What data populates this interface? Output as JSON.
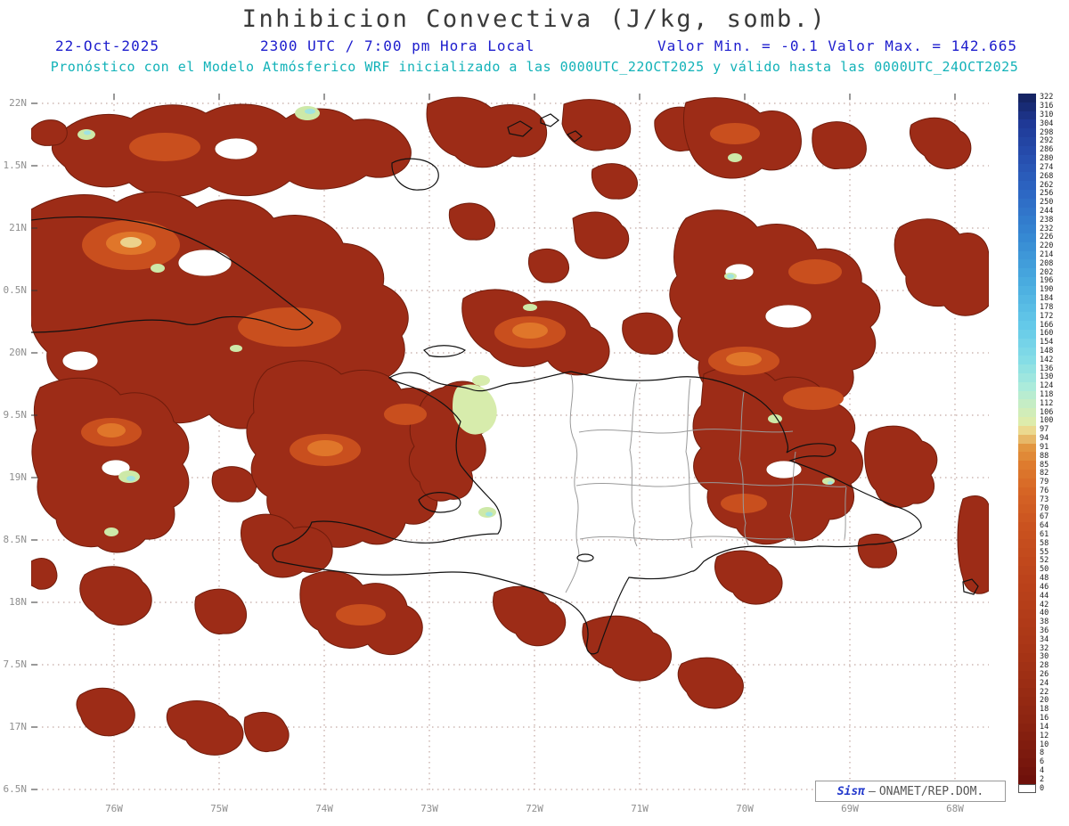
{
  "header": {
    "title": "Inhibicion Convectiva (J/kg, somb.)",
    "date": "22-Oct-2025",
    "time": "2300 UTC / 7:00 pm Hora Local",
    "min_max": "Valor Min. = -0.1  Valor Max. = 142.665",
    "forecast_note": "Pronóstico con el Modelo Atmósferico WRF inicializado a las 0000UTC_22OCT2025 y válido hasta las  0000UTC_24OCT2025"
  },
  "axes": {
    "y_labels": [
      "22N",
      "1.5N",
      "21N",
      "0.5N",
      "20N",
      "9.5N",
      "19N",
      "8.5N",
      "18N",
      "7.5N",
      "17N",
      "6.5N"
    ],
    "x_labels": [
      "76W",
      "75W",
      "74W",
      "73W",
      "72W",
      "71W",
      "70W",
      "69W",
      "68W"
    ]
  },
  "colorbar": {
    "units": "J/kg",
    "tick_labels_top_to_bottom": [
      322,
      316,
      310,
      304,
      298,
      292,
      286,
      280,
      274,
      268,
      262,
      256,
      250,
      244,
      238,
      232,
      226,
      220,
      214,
      208,
      202,
      196,
      190,
      184,
      178,
      172,
      166,
      160,
      154,
      148,
      142,
      136,
      130,
      124,
      118,
      112,
      106,
      100,
      97,
      94,
      91,
      88,
      85,
      82,
      79,
      76,
      73,
      70,
      67,
      64,
      61,
      58,
      55,
      52,
      50,
      48,
      46,
      44,
      42,
      40,
      38,
      36,
      34,
      32,
      30,
      28,
      26,
      24,
      22,
      20,
      18,
      16,
      14,
      12,
      10,
      8,
      6,
      4,
      2,
      0
    ],
    "stops": [
      [
        0,
        "#ffffff"
      ],
      [
        1,
        "#6f110b"
      ],
      [
        8,
        "#8d2511"
      ],
      [
        16,
        "#a83516"
      ],
      [
        24,
        "#bc431b"
      ],
      [
        30,
        "#ca521f"
      ],
      [
        34,
        "#d66525"
      ],
      [
        37,
        "#de7b2e"
      ],
      [
        39,
        "#e29640"
      ],
      [
        40,
        "#e7b868"
      ],
      [
        41,
        "#ebd98f"
      ],
      [
        42,
        "#ddecac"
      ],
      [
        44,
        "#c5edc5"
      ],
      [
        46,
        "#abebdb"
      ],
      [
        49,
        "#85dde6"
      ],
      [
        53,
        "#64c9e9"
      ],
      [
        58,
        "#49abdf"
      ],
      [
        63,
        "#3689d3"
      ],
      [
        68,
        "#2d68c4"
      ],
      [
        72,
        "#2750b0"
      ],
      [
        76,
        "#1f3996"
      ],
      [
        79,
        "#152464"
      ]
    ]
  },
  "map_meta": {
    "field": "Inhibicion Convectiva",
    "units": "J/kg",
    "value_min": -0.1,
    "value_max": 142.665,
    "model": "WRF",
    "initialized": "0000UTC_22OCT2025",
    "valid_until": "0000UTC_24OCT2025",
    "field_colors": {
      "low_dark_red": "#9d2c17",
      "outline": "#701c0c",
      "mid_orange": "#c94f1e",
      "light_orange": "#e0762a",
      "pale_yellow": "#ecd28c",
      "pale_green": "#d7ecac",
      "green": "#cde9a8",
      "cyan": "#9fe3e0"
    },
    "accent_blue": "#1c1ccd",
    "accent_cyan": "#12b2b8"
  },
  "legend": {
    "brand": "Sisπ",
    "separator": "–",
    "org": "ONAMET/REP.DOM."
  }
}
